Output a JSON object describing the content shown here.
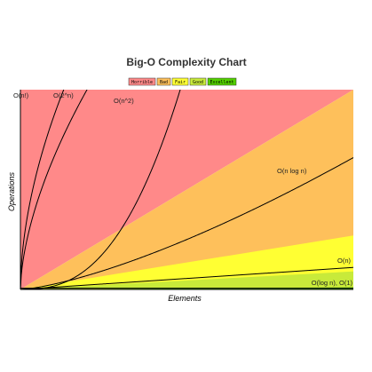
{
  "chart_data": {
    "type": "area",
    "title": "Big-O Complexity Chart",
    "xlabel": "Elements",
    "ylabel": "Operations",
    "xlim": [
      0,
      100
    ],
    "ylim": [
      0,
      100
    ],
    "grid": false,
    "legend_placement": "top-center",
    "legend": [
      {
        "label": "Horrible",
        "color": "#ff8989"
      },
      {
        "label": "Bad",
        "color": "#fec05b"
      },
      {
        "label": "Fair",
        "color": "#ffff33"
      },
      {
        "label": "Good",
        "color": "#c8ea3a"
      },
      {
        "label": "Excellent",
        "color": "#53d000"
      }
    ],
    "regions": [
      {
        "name": "Horrible",
        "color": "#ff8989"
      },
      {
        "name": "Bad",
        "color": "#fec05b",
        "upper_y_at_xmax": 100
      },
      {
        "name": "Fair",
        "color": "#ffff33",
        "upper_y_at_xmax": 27
      },
      {
        "name": "Good",
        "color": "#c8ea3a",
        "upper_y_at_xmax": 9
      },
      {
        "name": "Excellent",
        "color": "#53d000",
        "upper_y_at_xmax": 1
      }
    ],
    "series": [
      {
        "name": "O(n!)",
        "function": "factorial"
      },
      {
        "name": "O(2^n)",
        "function": "exponential"
      },
      {
        "name": "O(n^2)",
        "function": "quadratic"
      },
      {
        "name": "O(n log n)",
        "function": "nlogn"
      },
      {
        "name": "O(n)",
        "function": "linear"
      },
      {
        "name": "O(log n), O(1)",
        "function": "constant"
      }
    ],
    "line_color": "#000000"
  }
}
